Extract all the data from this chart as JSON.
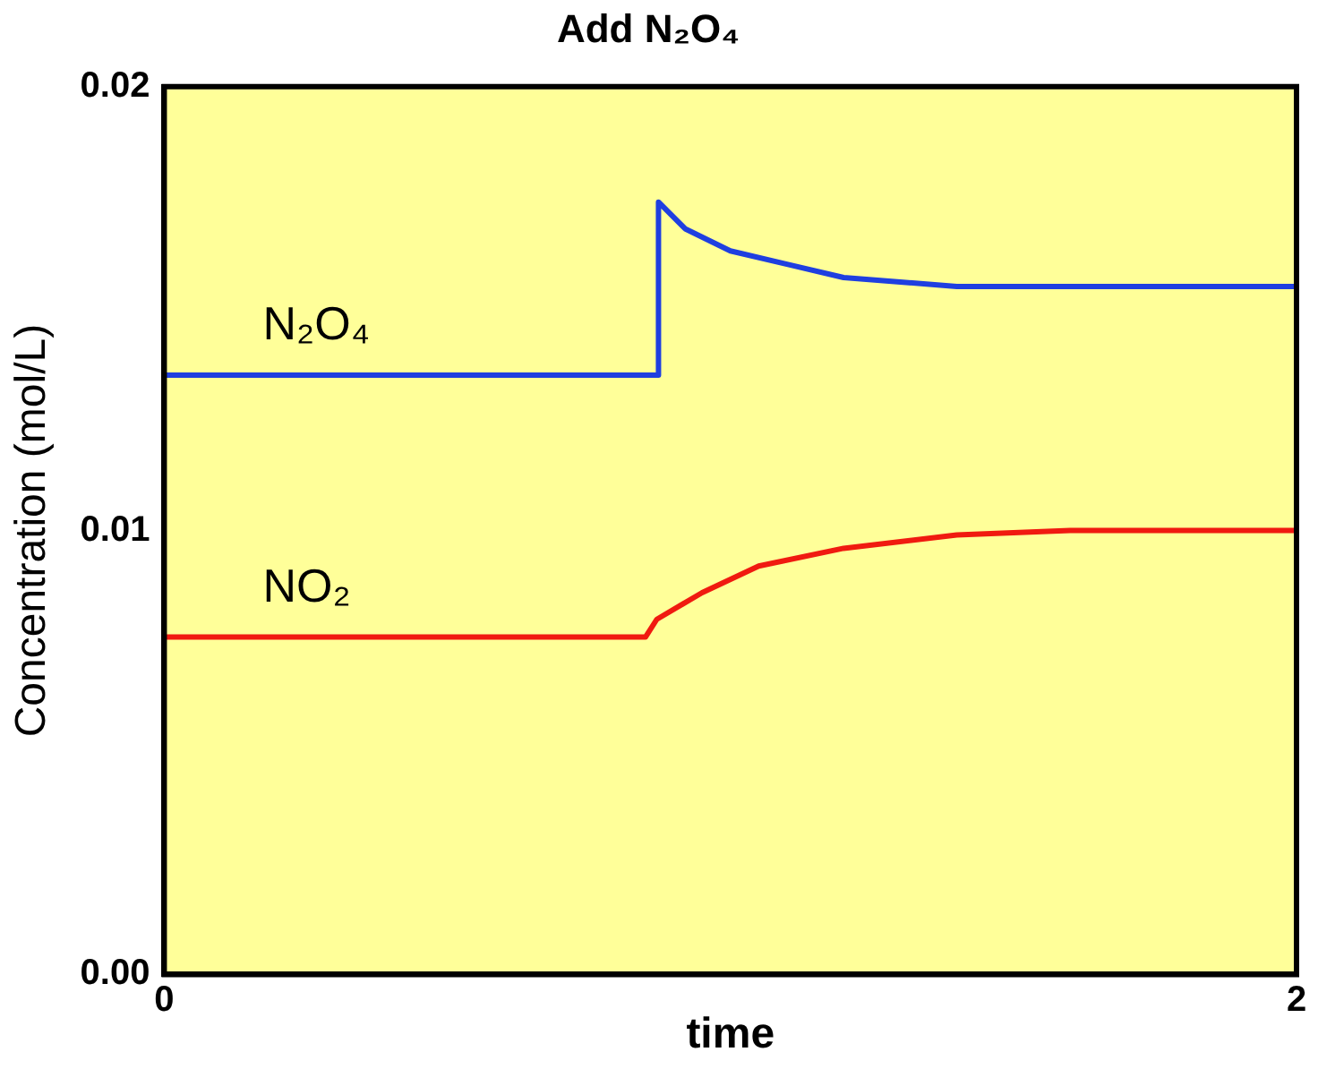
{
  "chart_data": {
    "type": "line",
    "title": "Add N₂O₄",
    "xlabel": "time",
    "ylabel": "Concentration (mol/L)",
    "xlim": [
      0,
      2
    ],
    "xticks": [
      0,
      2
    ],
    "ylim": [
      0,
      0.02
    ],
    "yticks": [
      {
        "value": 0,
        "label": "0.00"
      },
      {
        "value": 0.01,
        "label": "0.01"
      },
      {
        "value": 0.02,
        "label": "0.02"
      }
    ],
    "grid": false,
    "legend": false,
    "marker": "none",
    "line_style": "solid",
    "series": [
      {
        "name": "N₂O₄",
        "color": "#1f3fe0",
        "x": [
          0,
          0.873,
          0.873,
          0.92,
          1.0,
          1.1,
          1.2,
          1.3,
          1.4,
          2
        ],
        "values": [
          0.0135,
          0.0135,
          0.0174,
          0.0168,
          0.0163,
          0.016,
          0.0157,
          0.0156,
          0.0155,
          0.0155
        ]
      },
      {
        "name": "NO₂",
        "color": "#f01a10",
        "x": [
          0,
          0.85,
          0.87,
          0.95,
          1.05,
          1.2,
          1.4,
          1.6,
          2
        ],
        "values": [
          0.0076,
          0.0076,
          0.008,
          0.0086,
          0.0092,
          0.0096,
          0.0099,
          0.01,
          0.01
        ]
      }
    ]
  }
}
